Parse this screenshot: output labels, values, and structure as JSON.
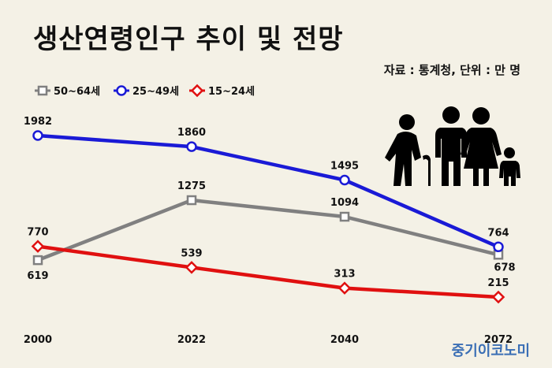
{
  "title": "생산연령인구 추이 및 전망",
  "source": "자료 : 통계청, 단위 : 만 명",
  "brand": "중기이코노미",
  "chart_data": {
    "type": "line",
    "title": "생산연령인구 추이 및 전망",
    "x": [
      "2000",
      "2022",
      "2040",
      "2072"
    ],
    "ylim": [
      0,
      2100
    ],
    "legend_position": "top-left",
    "grid": false,
    "series": [
      {
        "name": "50~64세",
        "color": "#808080",
        "marker": "square",
        "values": [
          619,
          1275,
          1094,
          678
        ]
      },
      {
        "name": "25~49세",
        "color": "#1a1ad6",
        "marker": "circle",
        "values": [
          1982,
          1860,
          1495,
          764
        ]
      },
      {
        "name": "15~24세",
        "color": "#e01010",
        "marker": "diamond",
        "values": [
          770,
          539,
          313,
          215
        ]
      }
    ]
  },
  "illustration": {
    "icon": "family-icon"
  }
}
